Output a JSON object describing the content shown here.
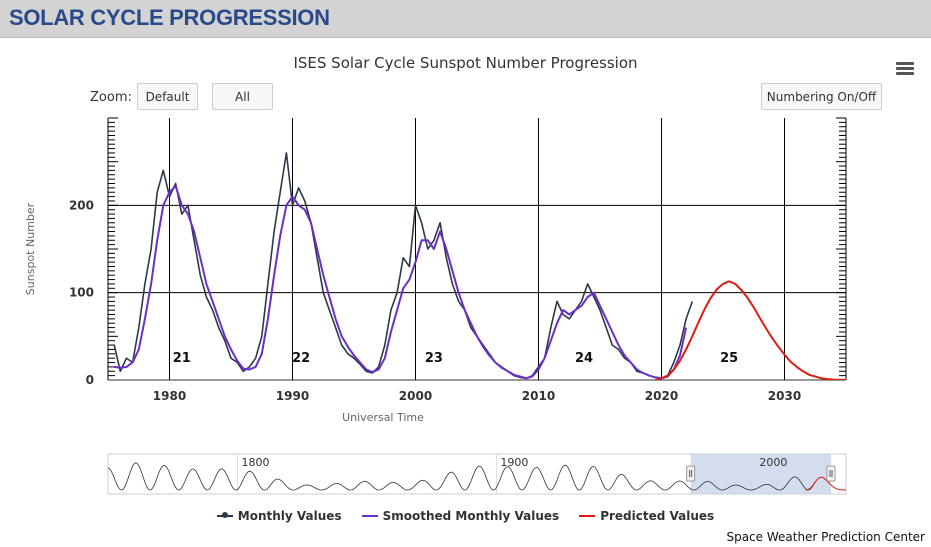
{
  "header": {
    "title": "SOLAR CYCLE PROGRESSION"
  },
  "zoom": {
    "label": "Zoom:",
    "buttons": [
      "Default",
      "All"
    ]
  },
  "numbering_button": "Numbering On/Off",
  "credit": "Space Weather Prediction Center",
  "colors": {
    "monthly": "#2b3a4a",
    "smoothed": "#6b2fc9",
    "predicted": "#dd1c12",
    "navigator_mask": "#c9d4ea"
  },
  "icons": {
    "menu": "hamburger-menu-icon"
  },
  "chart_data": {
    "type": "line",
    "title": "ISES Solar Cycle Sunspot Number Progression",
    "xlabel": "Universal Time",
    "ylabel": "Sunspot Number",
    "xlim": [
      1975,
      2035
    ],
    "ylim": [
      0,
      300
    ],
    "x_ticks": [
      1980,
      1990,
      2000,
      2010,
      2020,
      2030
    ],
    "y_ticks": [
      0,
      100,
      200
    ],
    "grid": true,
    "legend_position": "bottom-center",
    "cycle_labels": [
      {
        "label": "21",
        "x": 1981
      },
      {
        "label": "22",
        "x": 1990.7
      },
      {
        "label": "23",
        "x": 2001.5
      },
      {
        "label": "24",
        "x": 2013.7
      },
      {
        "label": "25",
        "x": 2025.5
      }
    ],
    "series": [
      {
        "name": "Monthly Values",
        "x": [
          1975.5,
          1976.0,
          1976.5,
          1977.0,
          1977.5,
          1978.0,
          1978.5,
          1979.0,
          1979.5,
          1980.0,
          1980.5,
          1981.0,
          1981.5,
          1982.0,
          1982.5,
          1983.0,
          1983.5,
          1984.0,
          1984.5,
          1985.0,
          1985.5,
          1986.0,
          1986.5,
          1987.0,
          1987.5,
          1988.0,
          1988.5,
          1989.0,
          1989.5,
          1990.0,
          1990.5,
          1991.0,
          1991.5,
          1992.0,
          1992.5,
          1993.0,
          1993.5,
          1994.0,
          1994.5,
          1995.0,
          1995.5,
          1996.0,
          1996.5,
          1997.0,
          1997.5,
          1998.0,
          1998.5,
          1999.0,
          1999.5,
          2000.0,
          2000.5,
          2001.0,
          2001.5,
          2002.0,
          2002.5,
          2003.0,
          2003.5,
          2004.0,
          2004.5,
          2005.0,
          2005.5,
          2006.0,
          2006.5,
          2007.0,
          2007.5,
          2008.0,
          2008.5,
          2009.0,
          2009.5,
          2010.0,
          2010.5,
          2011.0,
          2011.5,
          2012.0,
          2012.5,
          2013.0,
          2013.5,
          2014.0,
          2014.5,
          2015.0,
          2015.5,
          2016.0,
          2016.5,
          2017.0,
          2017.5,
          2018.0,
          2018.5,
          2019.0,
          2019.5,
          2020.0,
          2020.5,
          2021.0,
          2021.5,
          2022.0,
          2022.5
        ],
        "y": [
          40,
          10,
          25,
          20,
          60,
          110,
          150,
          215,
          240,
          210,
          225,
          190,
          200,
          160,
          120,
          95,
          80,
          60,
          45,
          25,
          20,
          10,
          15,
          25,
          50,
          110,
          170,
          215,
          260,
          200,
          220,
          205,
          180,
          140,
          100,
          80,
          60,
          40,
          30,
          25,
          18,
          10,
          8,
          15,
          40,
          80,
          100,
          140,
          130,
          200,
          180,
          150,
          160,
          180,
          140,
          110,
          90,
          80,
          60,
          50,
          40,
          30,
          20,
          15,
          10,
          5,
          3,
          2,
          5,
          15,
          25,
          60,
          90,
          75,
          70,
          80,
          90,
          110,
          95,
          80,
          60,
          40,
          35,
          25,
          20,
          10,
          8,
          5,
          3,
          2,
          5,
          20,
          40,
          70,
          90
        ]
      },
      {
        "name": "Smoothed Monthly Values",
        "x": [
          1975.5,
          1976.0,
          1976.5,
          1977.0,
          1977.5,
          1978.0,
          1978.5,
          1979.0,
          1979.5,
          1980.0,
          1980.5,
          1981.0,
          1981.5,
          1982.0,
          1982.5,
          1983.0,
          1983.5,
          1984.0,
          1984.5,
          1985.0,
          1985.5,
          1986.0,
          1986.5,
          1987.0,
          1987.5,
          1988.0,
          1988.5,
          1989.0,
          1989.5,
          1990.0,
          1990.5,
          1991.0,
          1991.5,
          1992.0,
          1992.5,
          1993.0,
          1993.5,
          1994.0,
          1994.5,
          1995.0,
          1995.5,
          1996.0,
          1996.5,
          1997.0,
          1997.5,
          1998.0,
          1998.5,
          1999.0,
          1999.5,
          2000.0,
          2000.5,
          2001.0,
          2001.5,
          2002.0,
          2002.5,
          2003.0,
          2003.5,
          2004.0,
          2004.5,
          2005.0,
          2005.5,
          2006.0,
          2006.5,
          2007.0,
          2007.5,
          2008.0,
          2008.5,
          2009.0,
          2009.5,
          2010.0,
          2010.5,
          2011.0,
          2011.5,
          2012.0,
          2012.5,
          2013.0,
          2013.5,
          2014.0,
          2014.5,
          2015.0,
          2015.5,
          2016.0,
          2016.5,
          2017.0,
          2017.5,
          2018.0,
          2018.5,
          2019.0,
          2019.5,
          2020.0,
          2020.5,
          2021.0,
          2021.5,
          2022.0
        ],
        "y": [
          15,
          14,
          15,
          20,
          35,
          70,
          110,
          160,
          200,
          215,
          222,
          200,
          190,
          170,
          140,
          110,
          90,
          70,
          50,
          35,
          22,
          13,
          12,
          15,
          30,
          70,
          120,
          165,
          200,
          210,
          200,
          195,
          180,
          150,
          120,
          95,
          70,
          50,
          38,
          28,
          20,
          12,
          9,
          12,
          25,
          55,
          80,
          105,
          115,
          135,
          160,
          160,
          150,
          170,
          150,
          125,
          100,
          80,
          65,
          50,
          38,
          28,
          20,
          14,
          10,
          6,
          4,
          2,
          4,
          12,
          25,
          45,
          65,
          80,
          75,
          80,
          85,
          95,
          100,
          85,
          70,
          55,
          40,
          28,
          20,
          12,
          8,
          5,
          3,
          2,
          4,
          12,
          28,
          60
        ]
      },
      {
        "name": "Predicted Values",
        "x": [
          2019.5,
          2020.0,
          2020.5,
          2021.0,
          2021.5,
          2022.0,
          2022.5,
          2023.0,
          2023.5,
          2024.0,
          2024.5,
          2025.0,
          2025.5,
          2026.0,
          2026.5,
          2027.0,
          2027.5,
          2028.0,
          2028.5,
          2029.0,
          2029.5,
          2030.0,
          2030.5,
          2031.0,
          2031.5,
          2032.0,
          2032.5,
          2033.0,
          2033.5,
          2034.0,
          2034.5,
          2035.0
        ],
        "y": [
          0,
          2,
          5,
          12,
          22,
          35,
          50,
          66,
          81,
          94,
          104,
          110,
          113,
          110,
          103,
          94,
          83,
          71,
          59,
          48,
          38,
          29,
          21,
          15,
          10,
          6,
          4,
          2,
          1,
          0.5,
          0.2,
          0
        ]
      }
    ],
    "navigator": {
      "x_labels": [
        "1800",
        "1900",
        "2000"
      ],
      "selected_range": [
        1975,
        2035
      ]
    }
  }
}
